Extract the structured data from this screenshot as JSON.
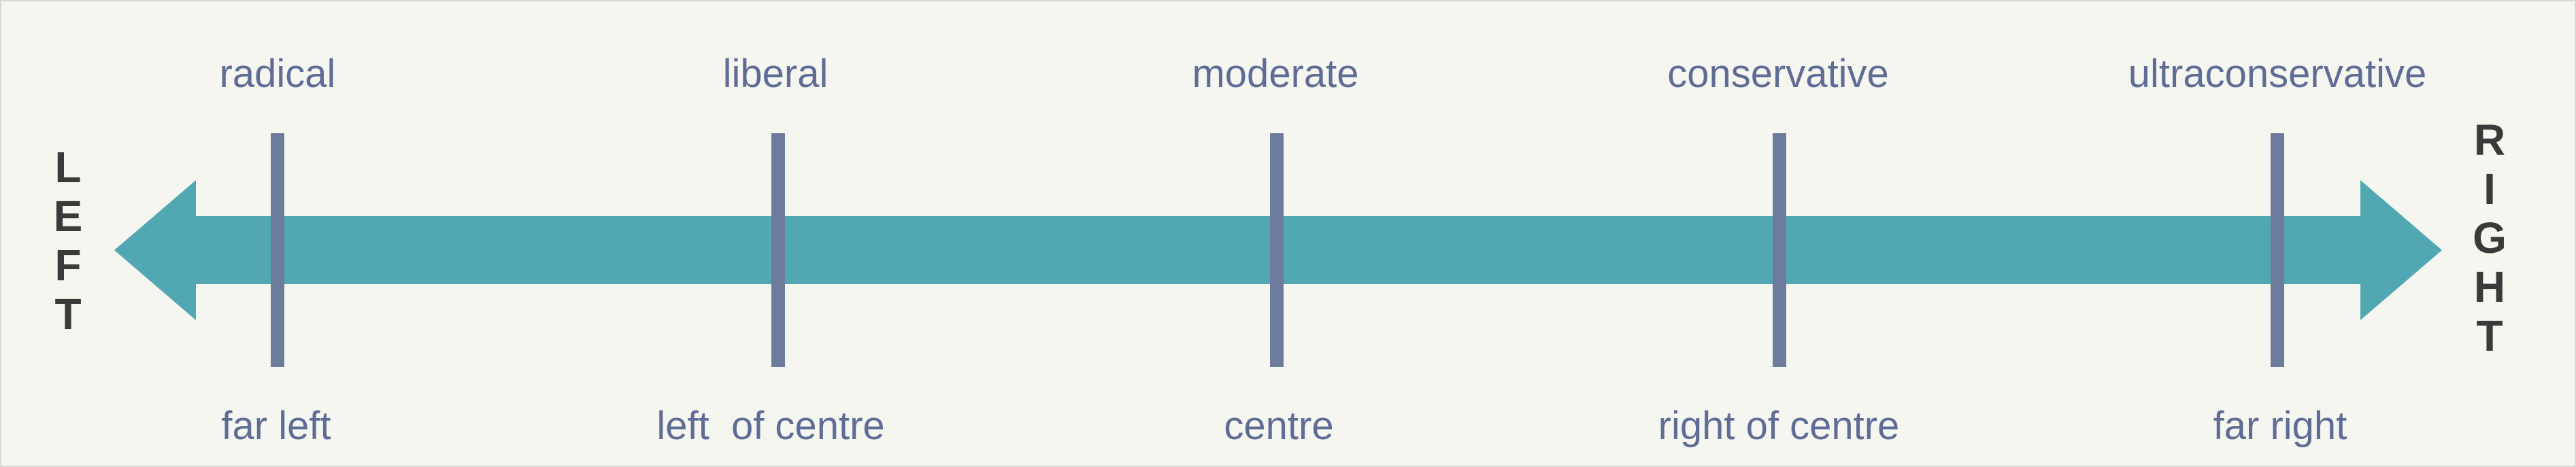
{
  "top_labels": [
    "radical",
    "liberal",
    "moderate",
    "conservative",
    "ultraconservative"
  ],
  "bottom_labels": [
    "far left",
    "left  of centre",
    "centre",
    "right of centre",
    "far right"
  ],
  "left_word": [
    "L",
    "E",
    "F",
    "T"
  ],
  "right_word": [
    "R",
    "I",
    "G",
    "H",
    "T"
  ],
  "colors": {
    "background": "#f5f6f0",
    "arrow": "#52a8b2",
    "tick": "#6d7b9c",
    "label": "#5f6d96",
    "side_text": "#3a3a3a"
  }
}
